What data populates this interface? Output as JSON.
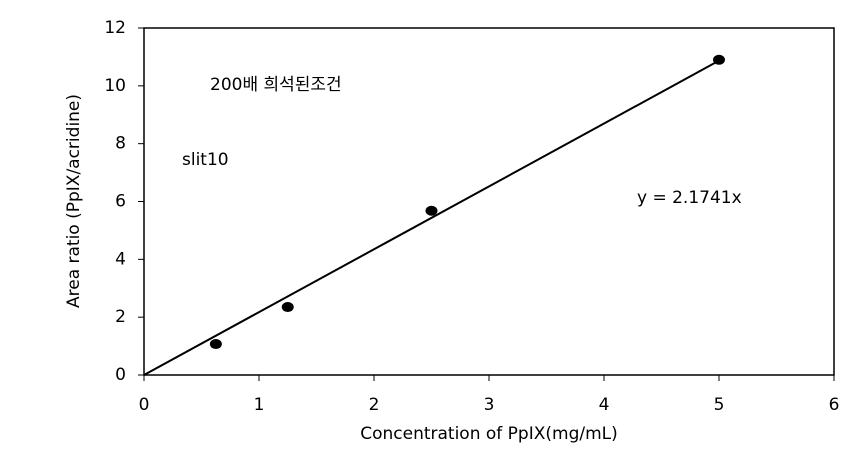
{
  "chart_data": {
    "type": "scatter",
    "x_label": "Concentration of PpIX(mg/mL)",
    "y_label": "Area ratio (PpIX/acridine)",
    "x": [
      0.625,
      1.25,
      2.5,
      5
    ],
    "values": [
      1.07,
      2.35,
      5.68,
      10.9
    ],
    "color": "#000000",
    "xlim": [
      0,
      6
    ],
    "xticks": [
      0,
      1,
      2,
      3,
      4,
      5,
      6
    ],
    "ylim": [
      0,
      12
    ],
    "yticks": [
      0,
      2,
      4,
      6,
      8,
      10,
      12
    ],
    "trendline_slope": 2.1741,
    "trendline_label": "y = 2.1741x",
    "annotations": [
      "200배 희석된조건",
      "slit10"
    ]
  }
}
